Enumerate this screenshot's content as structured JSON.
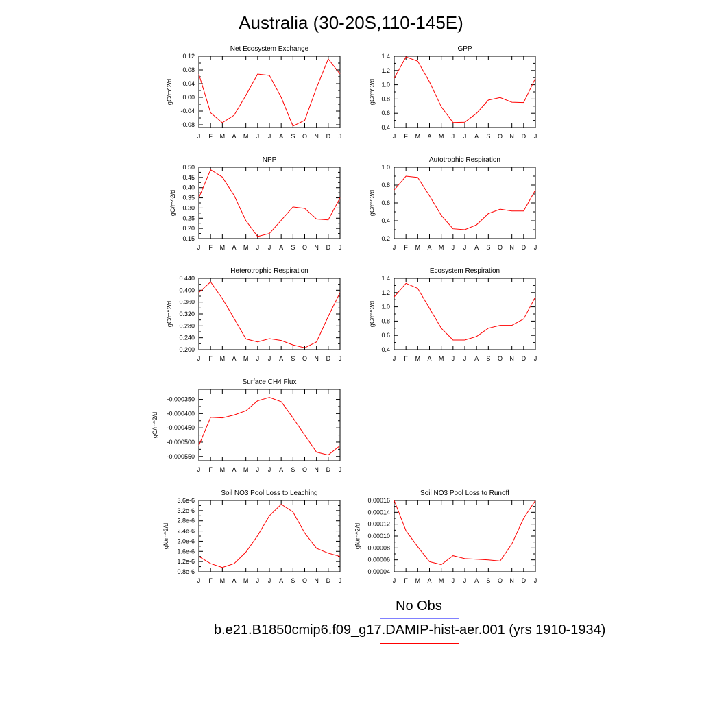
{
  "figure": {
    "title": "Australia (30-20S,110-145E)",
    "legend": [
      {
        "label": "No Obs",
        "color": "#8080ff"
      },
      {
        "label": "b.e21.B1850cmip6.f09_g17.DAMIP-hist-aer.001 (yrs 1910-1934)",
        "color": "#ff0000"
      }
    ]
  },
  "chart_data": [
    {
      "type": "line",
      "title": "Net Ecosystem Exchange",
      "ylabel": "gC/m^2/d",
      "x": [
        "J",
        "F",
        "M",
        "A",
        "M",
        "J",
        "J",
        "A",
        "S",
        "O",
        "N",
        "D",
        "J"
      ],
      "yticks": [
        "0.12",
        "0.08",
        "0.04",
        "0.00",
        "-0.04",
        "-0.08"
      ],
      "ylim": [
        -0.088,
        0.12
      ],
      "series": [
        {
          "color": "#ff0000",
          "values": [
            0.068,
            -0.045,
            -0.074,
            -0.052,
            0.006,
            0.068,
            0.064,
            0.0,
            -0.084,
            -0.067,
            0.028,
            0.112,
            0.068
          ]
        }
      ]
    },
    {
      "type": "line",
      "title": "GPP",
      "ylabel": "gC/m^2/d",
      "x": [
        "J",
        "F",
        "M",
        "A",
        "M",
        "J",
        "J",
        "A",
        "S",
        "O",
        "N",
        "D",
        "J"
      ],
      "yticks": [
        "1.4",
        "1.2",
        "1.0",
        "0.8",
        "0.6",
        "0.4"
      ],
      "ylim": [
        0.4,
        1.4
      ],
      "series": [
        {
          "color": "#ff0000",
          "values": [
            1.09,
            1.39,
            1.33,
            1.04,
            0.69,
            0.47,
            0.475,
            0.6,
            0.785,
            0.82,
            0.755,
            0.75,
            1.09
          ]
        }
      ]
    },
    {
      "type": "line",
      "title": "NPP",
      "ylabel": "gC/m^2/d",
      "x": [
        "J",
        "F",
        "M",
        "A",
        "M",
        "J",
        "J",
        "A",
        "S",
        "O",
        "N",
        "D",
        "J"
      ],
      "yticks": [
        "0.50",
        "0.45",
        "0.40",
        "0.35",
        "0.30",
        "0.25",
        "0.20",
        "0.15"
      ],
      "ylim": [
        0.15,
        0.5
      ],
      "series": [
        {
          "color": "#ff0000",
          "values": [
            0.35,
            0.488,
            0.452,
            0.362,
            0.238,
            0.16,
            0.175,
            0.24,
            0.305,
            0.298,
            0.246,
            0.242,
            0.35
          ]
        }
      ]
    },
    {
      "type": "line",
      "title": "Autotrophic Respiration",
      "ylabel": "gC/m^2/d",
      "x": [
        "J",
        "F",
        "M",
        "A",
        "M",
        "J",
        "J",
        "A",
        "S",
        "O",
        "N",
        "D",
        "J"
      ],
      "yticks": [
        "1.0",
        "0.8",
        "0.6",
        "0.4",
        "0.2"
      ],
      "ylim": [
        0.2,
        1.0
      ],
      "series": [
        {
          "color": "#ff0000",
          "values": [
            0.745,
            0.9,
            0.885,
            0.68,
            0.46,
            0.31,
            0.3,
            0.355,
            0.48,
            0.53,
            0.51,
            0.51,
            0.745
          ]
        }
      ]
    },
    {
      "type": "line",
      "title": "Heterotrophic Respiration",
      "ylabel": "gC/m^2/d",
      "x": [
        "J",
        "F",
        "M",
        "A",
        "M",
        "J",
        "J",
        "A",
        "S",
        "O",
        "N",
        "D",
        "J"
      ],
      "yticks": [
        "0.440",
        "0.400",
        "0.360",
        "0.320",
        "0.280",
        "0.240",
        "0.200"
      ],
      "ylim": [
        0.2,
        0.44
      ],
      "series": [
        {
          "color": "#ff0000",
          "values": [
            0.392,
            0.428,
            0.372,
            0.305,
            0.236,
            0.226,
            0.237,
            0.231,
            0.216,
            0.206,
            0.226,
            0.312,
            0.392
          ]
        }
      ]
    },
    {
      "type": "line",
      "title": "Ecosystem Respiration",
      "ylabel": "gC/m^2/d",
      "x": [
        "J",
        "F",
        "M",
        "A",
        "M",
        "J",
        "J",
        "A",
        "S",
        "O",
        "N",
        "D",
        "J"
      ],
      "yticks": [
        "1.4",
        "1.2",
        "1.0",
        "0.8",
        "0.6",
        "0.4"
      ],
      "ylim": [
        0.4,
        1.4
      ],
      "series": [
        {
          "color": "#ff0000",
          "values": [
            1.14,
            1.33,
            1.26,
            0.98,
            0.7,
            0.535,
            0.535,
            0.585,
            0.7,
            0.74,
            0.74,
            0.83,
            1.14
          ]
        }
      ]
    },
    {
      "type": "line",
      "title": "Surface CH4 Flux",
      "ylabel": "gC/m^2/d",
      "x": [
        "J",
        "F",
        "M",
        "A",
        "M",
        "J",
        "J",
        "A",
        "S",
        "O",
        "N",
        "D",
        "J"
      ],
      "yticks": [
        "-0.000350",
        "-0.000400",
        "-0.000450",
        "-0.000500",
        "-0.000550"
      ],
      "ylim": [
        -0.000565,
        -0.000315
      ],
      "series": [
        {
          "color": "#ff0000",
          "values": [
            -0.000512,
            -0.000413,
            -0.000415,
            -0.000405,
            -0.00039,
            -0.000355,
            -0.000343,
            -0.000358,
            -0.000415,
            -0.000475,
            -0.000535,
            -0.000545,
            -0.000512
          ]
        }
      ]
    },
    {
      "type": "line",
      "title": "Soil NO3 Pool Loss to Leaching",
      "ylabel": "gN/m^2/d",
      "x": [
        "J",
        "F",
        "M",
        "A",
        "M",
        "J",
        "J",
        "A",
        "S",
        "O",
        "N",
        "D",
        "J"
      ],
      "yticks": [
        "3.6e-6",
        "3.2e-6",
        "2.8e-6",
        "2.4e-6",
        "2.0e-6",
        "1.6e-6",
        "1.2e-6",
        "0.8e-6"
      ],
      "ylim": [
        8e-07,
        3.6e-06
      ],
      "series": [
        {
          "color": "#ff0000",
          "values": [
            1.4e-06,
            1.12e-06,
            9.7e-07,
            1.12e-06,
            1.57e-06,
            2.22e-06,
            3e-06,
            3.45e-06,
            3.15e-06,
            2.32e-06,
            1.72e-06,
            1.53e-06,
            1.4e-06
          ]
        }
      ]
    },
    {
      "type": "line",
      "title": "Soil NO3 Pool Loss to Runoff",
      "ylabel": "gN/m^2/d",
      "x": [
        "J",
        "F",
        "M",
        "A",
        "M",
        "J",
        "J",
        "A",
        "S",
        "O",
        "N",
        "D",
        "J"
      ],
      "yticks": [
        "0.00016",
        "0.00014",
        "0.00012",
        "0.00010",
        "0.00008",
        "0.00006",
        "0.00004"
      ],
      "ylim": [
        4e-05,
        0.00016
      ],
      "series": [
        {
          "color": "#ff0000",
          "values": [
            0.00016,
            0.000109,
            8.2e-05,
            5.7e-05,
            5.2e-05,
            6.7e-05,
            6.2e-05,
            6.1e-05,
            6e-05,
            5.8e-05,
            8.7e-05,
            0.00013,
            0.00016
          ]
        }
      ]
    }
  ]
}
